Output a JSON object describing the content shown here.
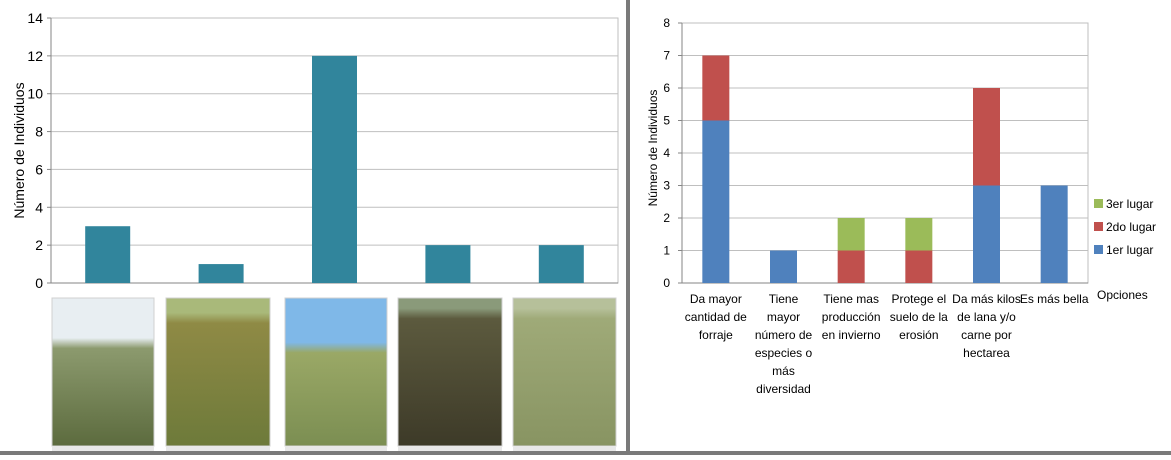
{
  "chart_data": [
    {
      "type": "bar",
      "ylabel": "Número de Individuos",
      "ylim": [
        0,
        14
      ],
      "yticks": [
        0,
        2,
        4,
        6,
        8,
        10,
        12,
        14
      ],
      "categories": [
        "",
        "",
        "",
        "",
        ""
      ],
      "values": [
        3,
        1,
        12,
        2,
        2
      ],
      "color": "#31859C",
      "grid": true,
      "photos": [
        "grassland-photo-1",
        "grassland-photo-2",
        "grassland-photo-3",
        "grassland-photo-4",
        "grassland-photo-5"
      ]
    },
    {
      "type": "bar",
      "stacked": true,
      "ylabel": "Número de Individuos",
      "xlabel": "Opciones",
      "ylim": [
        0,
        8
      ],
      "yticks": [
        0,
        1,
        2,
        3,
        4,
        5,
        6,
        7,
        8
      ],
      "grid": true,
      "legend_position": "right",
      "categories": [
        [
          "Da mayor",
          "cantidad de",
          "forraje"
        ],
        [
          "Tiene",
          "mayor",
          "número de",
          "especies o",
          "más",
          "diversidad"
        ],
        [
          "Tiene mas",
          "producción",
          "en invierno"
        ],
        [
          "Protege el",
          "suelo de la",
          "erosión"
        ],
        [
          "Da más kilos",
          "de lana y/o",
          "carne por",
          "hectarea"
        ],
        [
          "Es más bella"
        ]
      ],
      "series": [
        {
          "name": "1er lugar",
          "color": "#4F81BD",
          "values": [
            5,
            1,
            0,
            0,
            3,
            3
          ]
        },
        {
          "name": "2do lugar",
          "color": "#C0504D",
          "values": [
            2,
            0,
            1,
            1,
            3,
            0
          ]
        },
        {
          "name": "3er lugar",
          "color": "#9BBB59",
          "values": [
            0,
            0,
            1,
            1,
            0,
            0
          ]
        }
      ]
    }
  ]
}
